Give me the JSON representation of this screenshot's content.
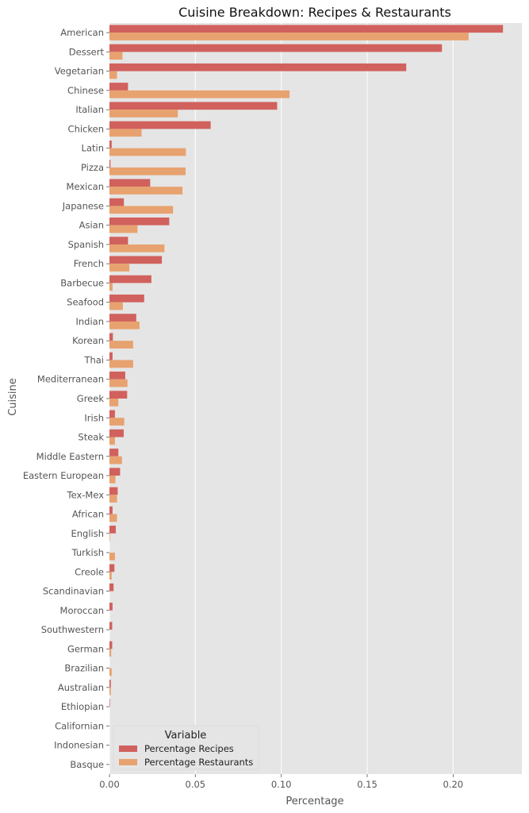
{
  "chart_data": {
    "type": "bar",
    "orientation": "horizontal",
    "title": "Cuisine Breakdown: Recipes & Restaurants",
    "xlabel": "Percentage",
    "ylabel": "Cuisine",
    "xlim": [
      0,
      0.24
    ],
    "xticks": [
      0.0,
      0.05,
      0.1,
      0.15,
      0.2
    ],
    "xtick_labels": [
      "0.00",
      "0.05",
      "0.10",
      "0.15",
      "0.20"
    ],
    "grid": true,
    "legend": {
      "title": "Variable",
      "placement": "bottom-left"
    },
    "categories": [
      "American",
      "Dessert",
      "Vegetarian",
      "Chinese",
      "Italian",
      "Chicken",
      "Latin",
      "Pizza",
      "Mexican",
      "Japanese",
      "Asian",
      "Spanish",
      "French",
      "Barbecue",
      "Seafood",
      "Indian",
      "Korean",
      "Thai",
      "Mediterranean",
      "Greek",
      "Irish",
      "Steak",
      "Middle Eastern",
      "Eastern European",
      "Tex-Mex",
      "African",
      "English",
      "Turkish",
      "Creole",
      "Scandinavian",
      "Moroccan",
      "Southwestern",
      "German",
      "Brazilian",
      "Australian",
      "Ethiopian",
      "Californian",
      "Indonesian",
      "Basque"
    ],
    "series": [
      {
        "name": "Percentage Recipes",
        "color": "#d1615d",
        "values": [
          0.229,
          0.1935,
          0.1727,
          0.0108,
          0.0976,
          0.0589,
          0.0013,
          0.0006,
          0.0237,
          0.0084,
          0.0348,
          0.0108,
          0.0305,
          0.0244,
          0.0202,
          0.0156,
          0.002,
          0.0018,
          0.0092,
          0.0103,
          0.0032,
          0.0083,
          0.0052,
          0.0062,
          0.0048,
          0.0018,
          0.0037,
          0.0,
          0.0029,
          0.0024,
          0.0018,
          0.0016,
          0.0016,
          0.0,
          0.0008,
          0.0003,
          0.0,
          0.0,
          0.0
        ]
      },
      {
        "name": "Percentage Restaurants",
        "color": "#e8a26f",
        "values": [
          0.209,
          0.0076,
          0.0044,
          0.1048,
          0.0398,
          0.0187,
          0.0445,
          0.0443,
          0.0425,
          0.037,
          0.0163,
          0.032,
          0.0116,
          0.0018,
          0.0078,
          0.0175,
          0.0138,
          0.0138,
          0.0105,
          0.0052,
          0.0086,
          0.0032,
          0.0073,
          0.0035,
          0.0044,
          0.0044,
          0.0003,
          0.0032,
          0.0013,
          0.0,
          0.0,
          0.0,
          0.001,
          0.0013,
          0.0008,
          0.0,
          0.0,
          0.0,
          0.0
        ]
      }
    ]
  },
  "colors": {
    "plot_background": "#e5e5e5",
    "grid": "#ffffff"
  }
}
